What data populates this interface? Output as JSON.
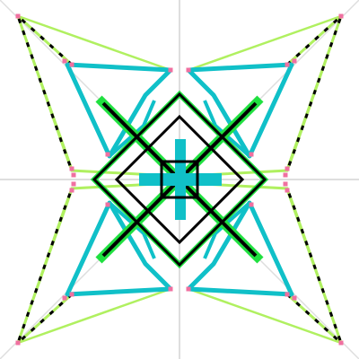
{
  "colors": {
    "background": "#ffffff",
    "guide": "#dedede",
    "outer": "#b0f060",
    "inner": "#10c0c8",
    "diagonal": "#000000",
    "green": "#20e040",
    "center": "#10c0c8",
    "vertex": "#f070a0"
  },
  "guides": {
    "midlines": true,
    "diagonals": true
  }
}
